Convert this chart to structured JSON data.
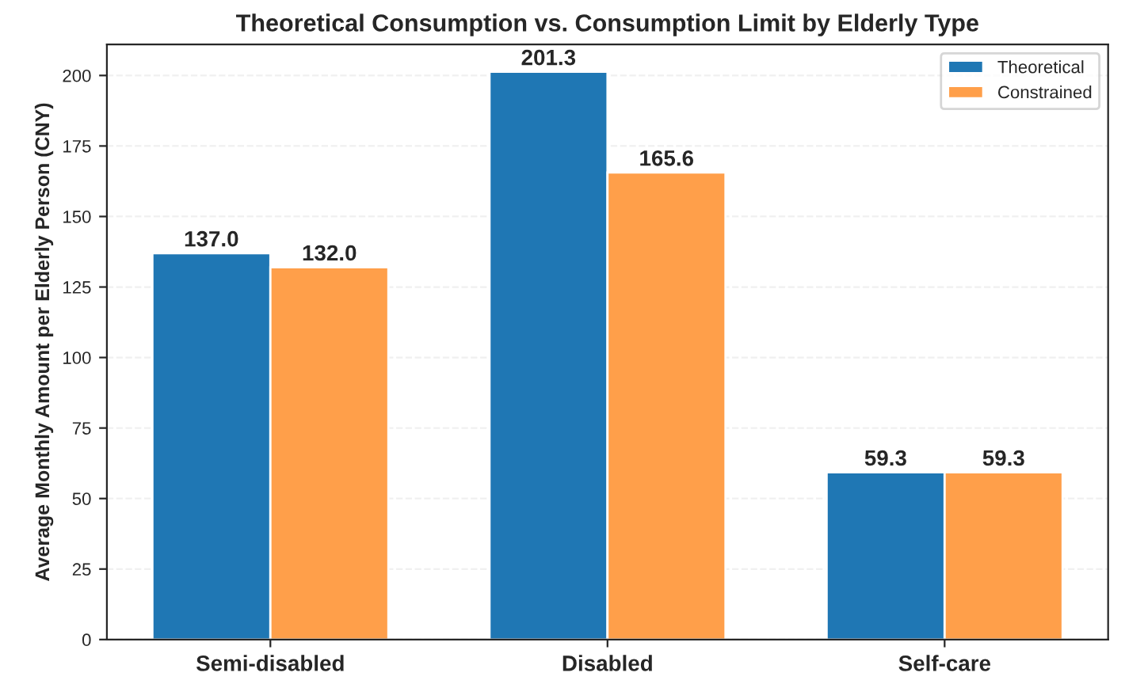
{
  "chart_data": {
    "type": "bar",
    "title": "Theoretical Consumption vs. Consumption Limit by Elderly Type",
    "ylabel": "Average Monthly Amount per Elderly Person (CNY)",
    "categories": [
      "Semi-disabled",
      "Disabled",
      "Self-care"
    ],
    "series": [
      {
        "name": "Theoretical",
        "color": "#1f77b4",
        "values": [
          137.0,
          201.3,
          59.3
        ],
        "value_labels": [
          "137.0",
          "201.3",
          "59.3"
        ]
      },
      {
        "name": "Constrained",
        "color": "#ff9f4a",
        "values": [
          132.0,
          165.6,
          59.3
        ],
        "value_labels": [
          "132.0",
          "165.6",
          "59.3"
        ]
      }
    ],
    "ylim": [
      0,
      211
    ],
    "yticks": [
      0,
      25,
      50,
      75,
      100,
      125,
      150,
      175,
      200
    ],
    "grid": "y",
    "legend": "top right"
  }
}
